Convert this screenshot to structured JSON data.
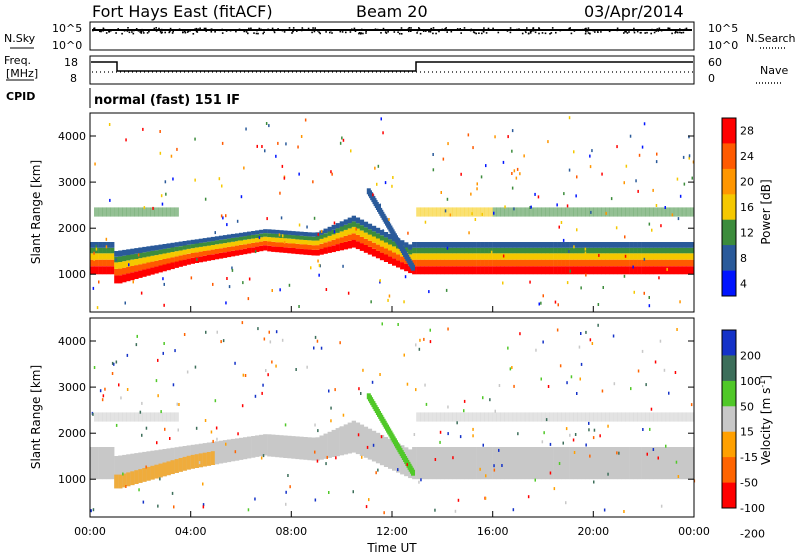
{
  "header": {
    "station": "Fort Hays East (fitACF)",
    "beam": "Beam 20",
    "date": "03/Apr/2014"
  },
  "side_labels": {
    "nsky": "N.Sky",
    "nsearch": "N.Search",
    "freq_line1": "Freq.",
    "freq_line2": "[MHz]",
    "nave": "Nave",
    "cpid": "CPID"
  },
  "mode_text": "normal (fast) 151 IF",
  "noise_panel": {
    "left_ticks": [
      "10^5",
      "10^0"
    ],
    "right_ticks": [
      "10^5",
      "10^0"
    ]
  },
  "freq_panel": {
    "left_ticks": [
      "18",
      "8"
    ],
    "right_ticks": [
      "60",
      "0"
    ]
  },
  "power_colorbar": {
    "label": "Power [dB]",
    "ticks": [
      "28",
      "24",
      "20",
      "16",
      "12",
      "8",
      "4"
    ],
    "colors": [
      "#ff0000",
      "#ff5a00",
      "#ff9600",
      "#f5c800",
      "#3c8c3c",
      "#2a5a9a",
      "#0014ff"
    ]
  },
  "velocity_colorbar": {
    "label": "Velocity [m s",
    "label_sup": "-1",
    "label_end": "]",
    "ticks": [
      "200",
      "100",
      "50",
      "15",
      "-15",
      "-50",
      "-100",
      "-200"
    ],
    "colors": [
      "#1432c8",
      "#3c6e5a",
      "#50c828",
      "#c8c8c8",
      "#ffa000",
      "#ff6400",
      "#ff0000"
    ]
  },
  "chart_data": [
    {
      "type": "heatmap",
      "title": "Power",
      "ylabel": "Slant Range [km]",
      "x_ticks": [
        "00:00",
        "04:00",
        "08:00",
        "12:00",
        "16:00",
        "20:00",
        "00:00"
      ],
      "y_ticks": [
        1000,
        2000,
        3000,
        4000
      ],
      "ylim": [
        180,
        4500
      ],
      "legend": "right"
    },
    {
      "type": "heatmap",
      "title": "Velocity",
      "ylabel": "Slant Range [km]",
      "xlabel": "Time UT",
      "x_ticks": [
        "00:00",
        "04:00",
        "08:00",
        "12:00",
        "16:00",
        "20:00",
        "00:00"
      ],
      "y_ticks": [
        1000,
        2000,
        3000,
        4000
      ],
      "ylim": [
        180,
        4500
      ],
      "legend": "right"
    }
  ]
}
